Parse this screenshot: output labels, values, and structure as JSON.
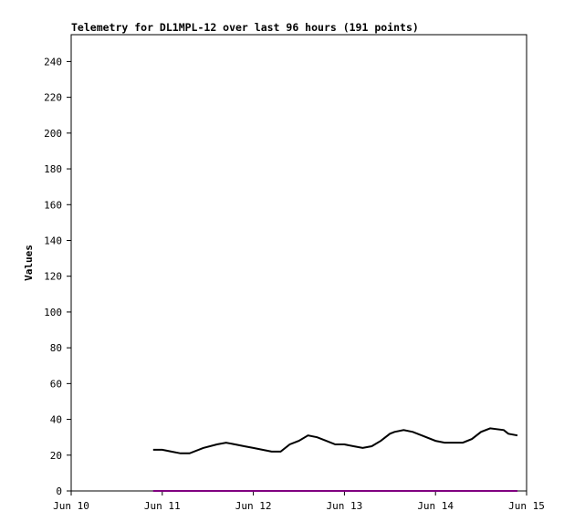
{
  "chart_data": {
    "type": "line",
    "title": "Telemetry for DL1MPL-12 over last 96 hours (191 points)",
    "y_label": "Values",
    "xlim": [
      10,
      15
    ],
    "xticks": [
      {
        "value": 10,
        "label": "Jun 10"
      },
      {
        "value": 11,
        "label": "Jun 11"
      },
      {
        "value": 12,
        "label": "Jun 12"
      },
      {
        "value": 13,
        "label": "Jun 13"
      },
      {
        "value": 14,
        "label": "Jun 14"
      },
      {
        "value": 15,
        "label": "Jun 15"
      }
    ],
    "ylim": [
      0,
      255
    ],
    "yticks": [
      0,
      20,
      40,
      60,
      80,
      100,
      120,
      140,
      160,
      180,
      200,
      220,
      240
    ],
    "series": [
      {
        "color": "#000000",
        "x": [
          10.9,
          11.0,
          11.1,
          11.2,
          11.3,
          11.45,
          11.6,
          11.7,
          11.8,
          11.9,
          12.0,
          12.1,
          12.2,
          12.3,
          12.4,
          12.5,
          12.6,
          12.7,
          12.8,
          12.9,
          13.0,
          13.1,
          13.2,
          13.3,
          13.4,
          13.5,
          13.55,
          13.65,
          13.75,
          13.85,
          14.0,
          14.1,
          14.3,
          14.4,
          14.5,
          14.6,
          14.75,
          14.8,
          14.9
        ],
        "values": [
          23,
          23,
          22,
          21,
          21,
          24,
          26,
          27,
          26,
          25,
          24,
          23,
          22,
          22,
          26,
          28,
          31,
          30,
          28,
          26,
          26,
          25,
          24,
          25,
          28,
          32,
          33,
          34,
          33,
          31,
          28,
          27,
          27,
          29,
          33,
          35,
          34,
          32,
          31
        ]
      },
      {
        "color": "#800080",
        "x": [
          10.9,
          14.9
        ],
        "values": [
          0,
          0
        ]
      }
    ]
  }
}
